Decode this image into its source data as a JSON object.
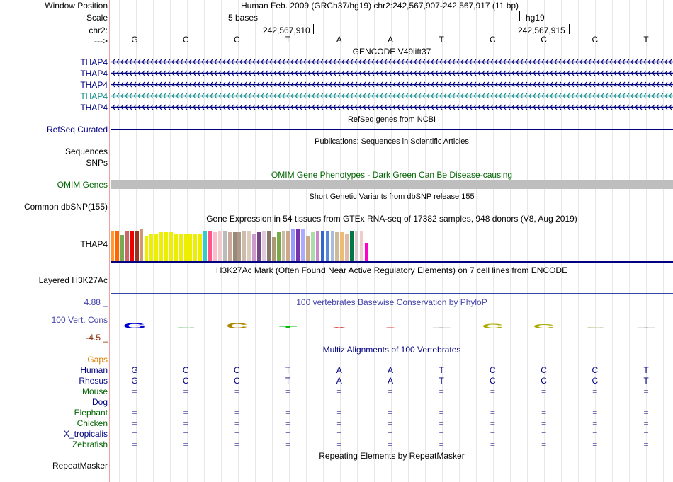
{
  "labels": {
    "window_position": "Window Position",
    "scale": "Scale",
    "chr": "chr2:",
    "arrow": "--->",
    "gencode_rows": [
      "THAP4",
      "THAP4",
      "THAP4",
      "THAP4",
      "THAP4"
    ],
    "refseq": "RefSeq Curated",
    "sequences": "Sequences",
    "snps": "SNPs",
    "omim": "OMIM Genes",
    "common_dbsnp": "Common dbSNP(155)",
    "gtex_gene": "THAP4",
    "h3k27ac": "Layered H3K27Ac",
    "cons_max": "4.88 _",
    "cons": "100 Vert. Cons",
    "cons_min": "-4.5 _",
    "repeatmasker": "RepeatMasker"
  },
  "header": {
    "assembly": "Human Feb. 2009 (GRCh37/hg19)   chr2:242,567,907-242,567,917 (11 bp)",
    "scale_text": "5 bases",
    "genome": "hg19",
    "coord1": "242,567,910",
    "coord2": "242,567,915"
  },
  "bases": [
    "G",
    "C",
    "C",
    "T",
    "A",
    "A",
    "T",
    "C",
    "C",
    "C",
    "T"
  ],
  "tracks": {
    "gencode_title": "GENCODE V49lift37",
    "refseq_title": "RefSeq genes from NCBI",
    "publications_title": "Publications: Sequences in Scientific Articles",
    "omim_title": "OMIM Gene Phenotypes - Dark Green Can Be Disease-causing",
    "dbsnp_title": "Short Genetic Variants from dbSNP release 155",
    "gtex_title": "Gene Expression in 54 tissues from GTEx RNA-seq of 17382 samples, 948 donors (V8, Aug 2019)",
    "h3k27ac_title": "H3K27Ac Mark (Often Found Near Active Regulatory Elements) on 7 cell lines from ENCODE",
    "phylop_title": "100 vertebrates Basewise Conservation by PhyloP",
    "multiz_title": "Multiz Alignments of 100 Vertebrates",
    "repeat_title": "Repeating Elements by RepeatMasker"
  },
  "gtex_bars": [
    {
      "h": 0.84,
      "color": "#ff9933"
    },
    {
      "h": 0.84,
      "color": "#ff6600"
    },
    {
      "h": 0.72,
      "color": "#77aa55"
    },
    {
      "h": 0.84,
      "color": "#cc6666"
    },
    {
      "h": 0.84,
      "color": "#ee0000"
    },
    {
      "h": 0.84,
      "color": "#993322"
    },
    {
      "h": 0.9,
      "color": "#cc9977"
    },
    {
      "h": 0.7,
      "color": "#eeee00"
    },
    {
      "h": 0.74,
      "color": "#eeee00"
    },
    {
      "h": 0.76,
      "color": "#eeee00"
    },
    {
      "h": 0.8,
      "color": "#eeee00"
    },
    {
      "h": 0.8,
      "color": "#eeee00"
    },
    {
      "h": 0.8,
      "color": "#eeee00"
    },
    {
      "h": 0.76,
      "color": "#eeee00"
    },
    {
      "h": 0.76,
      "color": "#eeee00"
    },
    {
      "h": 0.74,
      "color": "#eeee00"
    },
    {
      "h": 0.74,
      "color": "#eeee00"
    },
    {
      "h": 0.74,
      "color": "#eeee00"
    },
    {
      "h": 0.74,
      "color": "#eeee00"
    },
    {
      "h": 0.82,
      "color": "#33cccc"
    },
    {
      "h": 0.84,
      "color": "#ff5588"
    },
    {
      "h": 0.8,
      "color": "#ffbbcc"
    },
    {
      "h": 0.82,
      "color": "#eecccc"
    },
    {
      "h": 0.84,
      "color": "#bbbbbb"
    },
    {
      "h": 0.8,
      "color": "#ccaa99"
    },
    {
      "h": 0.8,
      "color": "#998877"
    },
    {
      "h": 0.8,
      "color": "#aa9988"
    },
    {
      "h": 0.82,
      "color": "#ccbbaa"
    },
    {
      "h": 0.82,
      "color": "#ddccbb"
    },
    {
      "h": 0.74,
      "color": "#cc99cc"
    },
    {
      "h": 0.8,
      "color": "#774488"
    },
    {
      "h": 0.82,
      "color": "#ddccdd"
    },
    {
      "h": 0.84,
      "color": "#887766"
    },
    {
      "h": 0.66,
      "color": "#aa9977"
    },
    {
      "h": 0.8,
      "color": "#77aa44"
    },
    {
      "h": 0.84,
      "color": "#ccbbaa"
    },
    {
      "h": 0.82,
      "color": "#ccaa88"
    },
    {
      "h": 0.9,
      "color": "#9999ff"
    },
    {
      "h": 0.88,
      "color": "#7733aa"
    },
    {
      "h": 0.88,
      "color": "#aaaaff"
    },
    {
      "h": 0.68,
      "color": "#ccaa88"
    },
    {
      "h": 0.8,
      "color": "#aaddaa"
    },
    {
      "h": 0.82,
      "color": "#cc88cc"
    },
    {
      "h": 0.84,
      "color": "#3366cc"
    },
    {
      "h": 0.84,
      "color": "#5588dd"
    },
    {
      "h": 0.82,
      "color": "#aabbdd"
    },
    {
      "h": 0.8,
      "color": "#ccbb99"
    },
    {
      "h": 0.8,
      "color": "#eebb77"
    },
    {
      "h": 0.76,
      "color": "#ddbbaa"
    },
    {
      "h": 0.84,
      "color": "#007744"
    },
    {
      "h": 0.84,
      "color": "#ddcccc"
    },
    {
      "h": 0.84,
      "color": "#eecccc"
    },
    {
      "h": 0.5,
      "color": "#ff00cc"
    }
  ],
  "phylop": [
    {
      "base": "G",
      "score": 2.2,
      "color": "#0000cc"
    },
    {
      "base": "C",
      "score": 0.2,
      "color": "#33aa33"
    },
    {
      "base": "C",
      "score": 2.1,
      "color": "#aa8800"
    },
    {
      "base": "T",
      "score": 0.9,
      "color": "#00bb00"
    },
    {
      "base": "A",
      "score": 0.5,
      "color": "#dd3333"
    },
    {
      "base": "A",
      "score": 0.3,
      "color": "#dd3333"
    },
    {
      "base": "T",
      "score": 0.0,
      "color": "#999999"
    },
    {
      "base": "C",
      "score": 1.8,
      "color": "#aaaa00"
    },
    {
      "base": "C",
      "score": 1.6,
      "color": "#aaaa00"
    },
    {
      "base": "C",
      "score": 0.2,
      "color": "#888833"
    },
    {
      "base": "T",
      "score": 0.0,
      "color": "#999999"
    }
  ],
  "multiz": {
    "gaps": "Gaps",
    "species": [
      {
        "name": "Human",
        "color": "#000080",
        "seq": [
          "G",
          "C",
          "C",
          "T",
          "A",
          "A",
          "T",
          "C",
          "C",
          "C",
          "T"
        ]
      },
      {
        "name": "Rhesus",
        "color": "#000080",
        "seq": [
          "G",
          "C",
          "C",
          "T",
          "A",
          "A",
          "T",
          "C",
          "C",
          "C",
          "T"
        ]
      },
      {
        "name": "Mouse",
        "color": "#006400",
        "seq": [
          "=",
          "=",
          "=",
          "=",
          "=",
          "=",
          "=",
          "=",
          "=",
          "=",
          "="
        ]
      },
      {
        "name": "Dog",
        "color": "#000080",
        "seq": [
          "=",
          "=",
          "=",
          "=",
          "=",
          "=",
          "=",
          "=",
          "=",
          "=",
          "="
        ]
      },
      {
        "name": "Elephant",
        "color": "#006400",
        "seq": [
          "=",
          "=",
          "=",
          "=",
          "=",
          "=",
          "=",
          "=",
          "=",
          "=",
          "="
        ]
      },
      {
        "name": "Chicken",
        "color": "#006400",
        "seq": [
          "=",
          "=",
          "=",
          "=",
          "=",
          "=",
          "=",
          "=",
          "=",
          "=",
          "="
        ]
      },
      {
        "name": "X_tropicalis",
        "color": "#000080",
        "seq": [
          "=",
          "=",
          "=",
          "=",
          "=",
          "=",
          "=",
          "=",
          "=",
          "=",
          "="
        ]
      },
      {
        "name": "Zebrafish",
        "color": "#006400",
        "seq": [
          "=",
          "=",
          "=",
          "=",
          "=",
          "=",
          "=",
          "=",
          "=",
          "=",
          "="
        ]
      }
    ]
  },
  "colors": {
    "gene_navy": "#000080",
    "gene_teal": "#0c8c8c",
    "omim_green": "#006400",
    "omim_bar": "#bebebe",
    "phylop_blue": "#4444aa",
    "min_red": "#8b2500",
    "gaps_orange": "#e08000"
  }
}
